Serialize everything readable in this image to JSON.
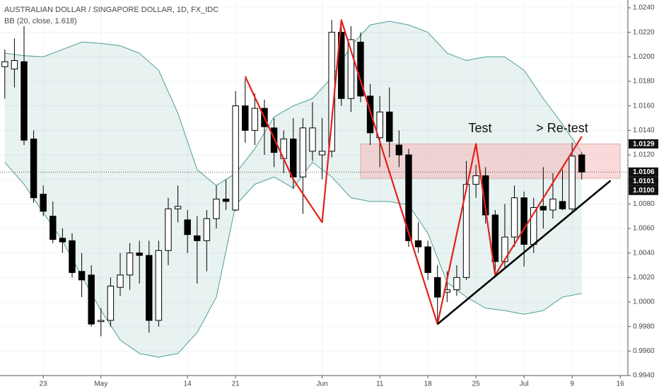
{
  "chart_data": {
    "type": "candlestick",
    "title": "AUSTRALIAN DOLLAR / SINGAPORE DOLLAR, 1D, FX_IDC",
    "subtitle": "BB (20, close, 1.618)",
    "open": [
      1.0192,
      1.019,
      1.0196,
      1.0133,
      1.0088,
      1.007,
      1.0052,
      1.005,
      1.0025,
      1.0022,
      0.9984,
      0.9985,
      1.0012,
      1.0022,
      1.004,
      1.0038,
      0.9985,
      1.0042,
      1.0076,
      1.0067,
      1.0054,
      1.005,
      1.0068,
      1.0084,
      1.0075,
      1.016,
      1.014,
      1.0158,
      1.0142,
      1.0117,
      1.0133,
      1.0102,
      1.0123,
      1.012,
      1.0123,
      1.022,
      1.0166,
      1.0212,
      1.0168,
      1.0134,
      1.0155,
      1.0128,
      1.012,
      1.005,
      1.0045,
      1.002,
      1.0008,
      1.001,
      1.002,
      1.0096,
      1.0103,
      1.0071,
      1.0033,
      1.0053,
      1.0085,
      1.0047,
      1.0078,
      1.0075,
      1.0082,
      1.0076,
      1.012
    ],
    "high": [
      1.0206,
      1.0215,
      1.0225,
      1.014,
      1.0095,
      1.0082,
      1.006,
      1.0056,
      1.004,
      1.003,
      0.9995,
      1.002,
      1.004,
      1.0048,
      1.005,
      1.005,
      1.005,
      1.0085,
      1.0095,
      1.0075,
      1.007,
      1.0075,
      1.0095,
      1.01,
      1.0172,
      1.0182,
      1.017,
      1.0165,
      1.015,
      1.014,
      1.015,
      1.015,
      1.0163,
      1.015,
      1.023,
      1.023,
      1.0225,
      1.022,
      1.0178,
      1.0168,
      1.0175,
      1.014,
      1.0125,
      1.0065,
      1.005,
      1.003,
      1.0025,
      1.003,
      1.0115,
      1.0112,
      1.011,
      1.0075,
      1.008,
      1.0095,
      1.009,
      1.0085,
      1.011,
      1.0105,
      1.0108,
      1.013,
      1.0122
    ],
    "low": [
      1.0166,
      1.0175,
      1.0128,
      1.0081,
      1.007,
      1.0048,
      1.004,
      1.002,
      1.0004,
      0.998,
      0.9972,
      0.998,
      1.0005,
      1.001,
      1.0015,
      0.9975,
      0.998,
      1.003,
      1.0065,
      1.004,
      1.0015,
      1.0025,
      1.006,
      1.0075,
      1.0074,
      1.013,
      1.0128,
      1.012,
      1.011,
      1.0105,
      1.0092,
      1.0072,
      1.0115,
      1.01,
      1.0118,
      1.016,
      1.0155,
      1.0163,
      1.0128,
      1.011,
      1.0118,
      1.011,
      1.0045,
      1.004,
      1.0018,
      0.9982,
      1.0,
      1.0005,
      1.0018,
      1.0085,
      1.0064,
      1.002,
      1.0028,
      1.0045,
      1.0029,
      1.004,
      1.006,
      1.0068,
      1.0075,
      1.0074,
      1.01
    ],
    "close": [
      1.0196,
      1.0197,
      1.0132,
      1.0085,
      1.0074,
      1.0051,
      1.0049,
      1.0024,
      1.0018,
      0.9982,
      0.9985,
      1.0013,
      1.0022,
      1.004,
      1.0038,
      0.9985,
      1.0042,
      1.0076,
      1.0078,
      1.0055,
      1.005,
      1.0068,
      1.0084,
      1.0082,
      1.016,
      1.014,
      1.0158,
      1.0143,
      1.0122,
      1.0133,
      1.0102,
      1.0142,
      1.0142,
      1.0123,
      1.022,
      1.0166,
      1.0214,
      1.0168,
      1.0138,
      1.0155,
      1.0131,
      1.012,
      1.005,
      1.0045,
      1.0024,
      1.0004,
      1.001,
      1.002,
      1.0096,
      1.0103,
      1.0071,
      1.0033,
      1.0053,
      1.0085,
      1.0047,
      1.0077,
      1.0075,
      1.0084,
      1.0076,
      1.0119,
      1.0106
    ],
    "up_color": "#ffffff",
    "down_color": "#000000",
    "bands": {
      "x": [
        0,
        2,
        4,
        6,
        8,
        10,
        12,
        14,
        16,
        18,
        20,
        22,
        24,
        26,
        28,
        30,
        32,
        34,
        36,
        38,
        40,
        42,
        44,
        46,
        48,
        50,
        52,
        54,
        56,
        58,
        60
      ],
      "upper": [
        1.0203,
        1.0201,
        1.02,
        1.0206,
        1.0212,
        1.0211,
        1.0209,
        1.0203,
        1.0189,
        1.0154,
        1.0108,
        1.0095,
        1.0105,
        1.0125,
        1.0151,
        1.016,
        1.0166,
        1.0183,
        1.0209,
        1.0226,
        1.0229,
        1.0226,
        1.022,
        1.0203,
        1.0197,
        1.02,
        1.02,
        1.0189,
        1.0166,
        1.0145,
        1.0122
      ],
      "lower": [
        1.0114,
        1.0096,
        1.0073,
        1.005,
        1.0021,
        0.9993,
        0.9969,
        0.9958,
        0.9955,
        0.9958,
        0.9975,
        1.0004,
        1.0079,
        1.0096,
        1.0102,
        1.0093,
        1.0114,
        1.0102,
        1.0085,
        1.0082,
        1.0082,
        1.0079,
        1.0056,
        1.0016,
        1.0004,
        0.9995,
        0.9993,
        0.999,
        0.9993,
        1.0004,
        1.0007
      ],
      "color": "#4d9e95"
    },
    "zigzag": {
      "x": [
        25,
        30,
        33,
        35,
        45,
        49,
        51,
        60
      ],
      "values": [
        1.0184,
        1.01,
        1.0065,
        1.023,
        0.9982,
        1.0129,
        1.0022,
        1.0135
      ],
      "color": "#e3201b"
    },
    "trendline": {
      "x": [
        45,
        63
      ],
      "values": [
        0.9982,
        1.0099
      ],
      "color": "#000000"
    },
    "zone": {
      "x": [
        37,
        64
      ],
      "values": [
        1.0129,
        1.0101
      ],
      "color": "#f4b9b9"
    },
    "annotations": [
      "Test",
      "> Re-test"
    ],
    "markers": [
      {
        "value": 1.0129,
        "label": "1.0129"
      },
      {
        "value": 1.0106,
        "label": "1.0106"
      },
      {
        "value": 1.0101,
        "label": "1.0101"
      },
      {
        "value": 1.01,
        "label": "1.0100"
      }
    ],
    "xlim": [
      -0.5,
      64.8
    ],
    "xticks": [
      {
        "value": 4,
        "label": "23"
      },
      {
        "value": 10,
        "label": "May"
      },
      {
        "value": 19,
        "label": "14"
      },
      {
        "value": 24,
        "label": "21"
      },
      {
        "value": 33,
        "label": "Jun"
      },
      {
        "value": 39,
        "label": "11"
      },
      {
        "value": 44,
        "label": "18"
      },
      {
        "value": 49,
        "label": "25"
      },
      {
        "value": 54,
        "label": "Jul"
      },
      {
        "value": 59,
        "label": "9"
      },
      {
        "value": 64,
        "label": "16"
      }
    ],
    "ylim": [
      0.994,
      1.024
    ],
    "yticks": [
      {
        "value": 0.994,
        "label": "0.9940"
      },
      {
        "value": 0.996,
        "label": "0.9960"
      },
      {
        "value": 0.998,
        "label": "0.9980"
      },
      {
        "value": 1.0,
        "label": "1.0000"
      },
      {
        "value": 1.002,
        "label": "1.0020"
      },
      {
        "value": 1.004,
        "label": "1.0040"
      },
      {
        "value": 1.006,
        "label": "1.0060"
      },
      {
        "value": 1.008,
        "label": "1.0080"
      },
      {
        "value": 1.01,
        "label": "1.0100"
      },
      {
        "value": 1.012,
        "label": "1.0120"
      },
      {
        "value": 1.014,
        "label": "1.0140"
      },
      {
        "value": 1.016,
        "label": "1.0160"
      },
      {
        "value": 1.018,
        "label": "1.0180"
      },
      {
        "value": 1.02,
        "label": "1.0200"
      },
      {
        "value": 1.022,
        "label": "1.0220"
      },
      {
        "value": 1.024,
        "label": "1.0240"
      }
    ],
    "grid": true
  }
}
